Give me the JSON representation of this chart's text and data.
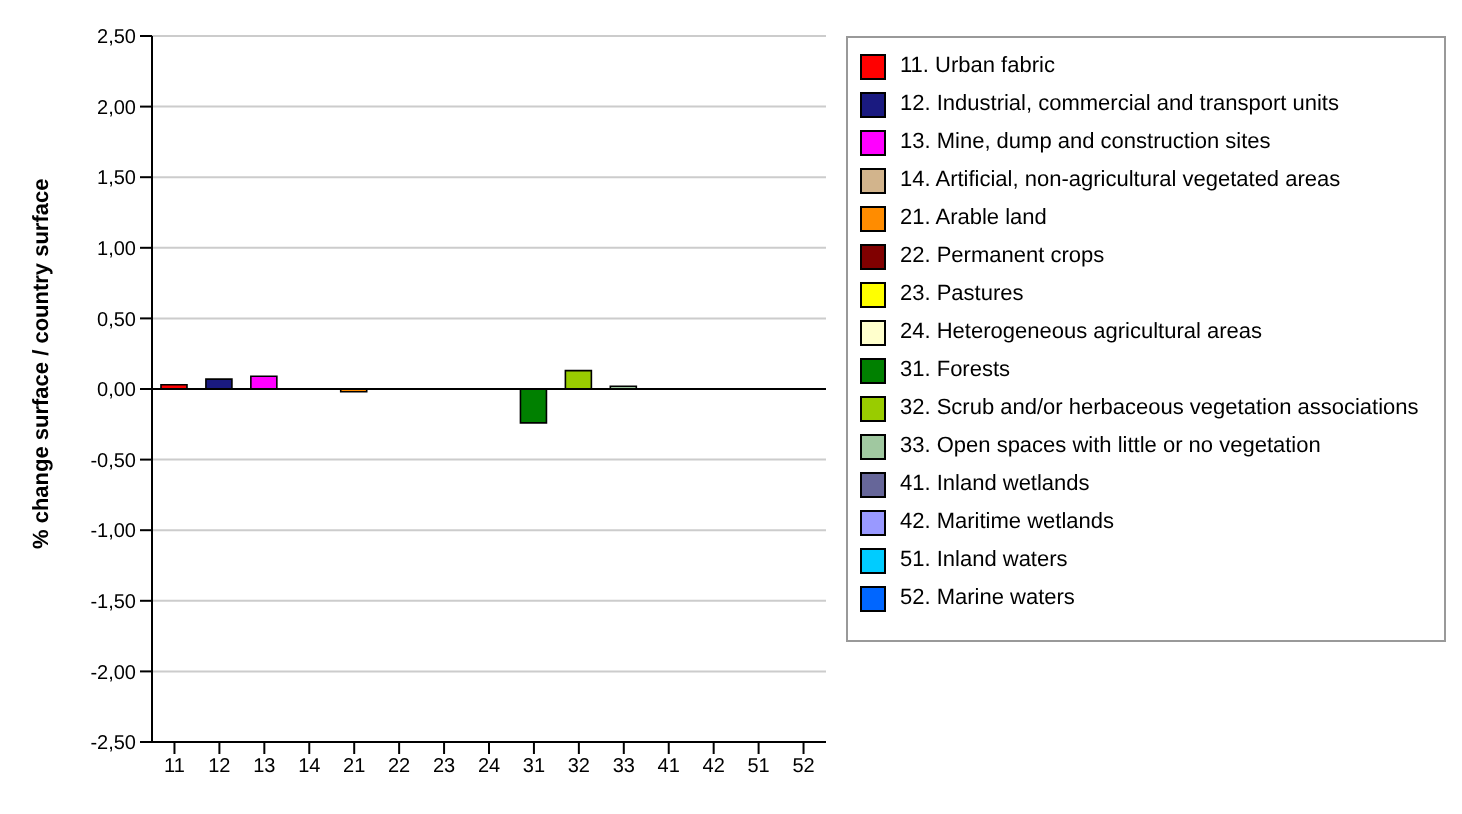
{
  "chart_data": {
    "type": "bar",
    "ylabel": "% change surface / country surface",
    "categories": [
      "11",
      "12",
      "13",
      "14",
      "21",
      "22",
      "23",
      "24",
      "31",
      "32",
      "33",
      "41",
      "42",
      "51",
      "52"
    ],
    "stacked": true,
    "grid": "y",
    "legend": "right",
    "ylim": [
      -2.5,
      2.5
    ],
    "yticks": [
      {
        "value": -2.5,
        "label": "-2,50"
      },
      {
        "value": -2,
        "label": "-2,00"
      },
      {
        "value": -1.5,
        "label": "-1,50"
      },
      {
        "value": -1,
        "label": "-1,00"
      },
      {
        "value": -0.5,
        "label": "-0,50"
      },
      {
        "value": 0,
        "label": "0,00"
      },
      {
        "value": 0.5,
        "label": "0,50"
      },
      {
        "value": 1,
        "label": "1,00"
      },
      {
        "value": 1.5,
        "label": "1,50"
      },
      {
        "value": 2,
        "label": "2,00"
      },
      {
        "value": 2.5,
        "label": "2,50"
      }
    ],
    "series": [
      {
        "name": "11. Urban fabric",
        "color": "#ff0000",
        "values": [
          0.03,
          null,
          null,
          null,
          null,
          null,
          null,
          null,
          null,
          null,
          null,
          null,
          null,
          null,
          null
        ]
      },
      {
        "name": "12. Industrial, commercial and transport units",
        "color": "#1a1a80",
        "values": [
          null,
          0.07,
          null,
          null,
          null,
          null,
          null,
          null,
          null,
          null,
          null,
          null,
          null,
          null,
          null
        ]
      },
      {
        "name": "13. Mine, dump and construction sites",
        "color": "#ff00ff",
        "values": [
          null,
          null,
          0.09,
          null,
          null,
          null,
          null,
          null,
          null,
          null,
          null,
          null,
          null,
          null,
          null
        ]
      },
      {
        "name": "14. Artificial, non-agricultural vegetated areas",
        "color": "#d2b48c",
        "values": [
          null,
          null,
          null,
          0,
          null,
          null,
          null,
          null,
          null,
          null,
          null,
          null,
          null,
          null,
          null
        ]
      },
      {
        "name": "21. Arable land",
        "color": "#ff8c00",
        "values": [
          null,
          null,
          null,
          null,
          -0.02,
          null,
          null,
          null,
          null,
          null,
          null,
          null,
          null,
          null,
          null
        ]
      },
      {
        "name": "22. Permanent crops",
        "color": "#800000",
        "values": [
          null,
          null,
          null,
          null,
          null,
          0,
          null,
          null,
          null,
          null,
          null,
          null,
          null,
          null,
          null
        ]
      },
      {
        "name": "23. Pastures",
        "color": "#ffff00",
        "values": [
          null,
          null,
          null,
          null,
          null,
          null,
          0,
          null,
          null,
          null,
          null,
          null,
          null,
          null,
          null
        ]
      },
      {
        "name": "24. Heterogeneous agricultural areas",
        "color": "#ffffcc",
        "values": [
          null,
          null,
          null,
          null,
          null,
          null,
          null,
          0,
          null,
          null,
          null,
          null,
          null,
          null,
          null
        ]
      },
      {
        "name": "31. Forests",
        "color": "#008000",
        "values": [
          null,
          null,
          null,
          null,
          null,
          null,
          null,
          null,
          -0.24,
          null,
          null,
          null,
          null,
          null,
          null
        ]
      },
      {
        "name": "32. Scrub and/or herbaceous vegetation associations",
        "color": "#99cc00",
        "values": [
          null,
          null,
          null,
          null,
          null,
          null,
          null,
          null,
          null,
          0.13,
          null,
          null,
          null,
          null,
          null
        ]
      },
      {
        "name": "33. Open spaces with little or no vegetation",
        "color": "#a0c8a0",
        "values": [
          null,
          null,
          null,
          null,
          null,
          null,
          null,
          null,
          null,
          null,
          0.02,
          null,
          null,
          null,
          null
        ]
      },
      {
        "name": "41. Inland wetlands",
        "color": "#666699",
        "values": [
          null,
          null,
          null,
          null,
          null,
          null,
          null,
          null,
          null,
          null,
          null,
          0,
          null,
          null,
          null
        ]
      },
      {
        "name": "42. Maritime wetlands",
        "color": "#9999ff",
        "values": [
          null,
          null,
          null,
          null,
          null,
          null,
          null,
          null,
          null,
          null,
          null,
          null,
          0,
          null,
          null
        ]
      },
      {
        "name": "51. Inland waters",
        "color": "#00ccff",
        "values": [
          null,
          null,
          null,
          null,
          null,
          null,
          null,
          null,
          null,
          null,
          null,
          null,
          null,
          0,
          null
        ]
      },
      {
        "name": "52. Marine waters",
        "color": "#0066ff",
        "values": [
          null,
          null,
          null,
          null,
          null,
          null,
          null,
          null,
          null,
          null,
          null,
          null,
          null,
          null,
          0
        ]
      }
    ]
  }
}
